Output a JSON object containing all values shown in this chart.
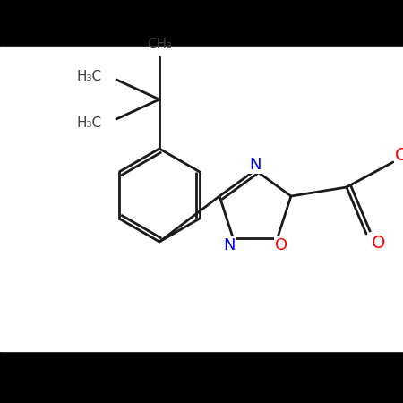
{
  "background_color": "#ffffff",
  "black_bar_color": "#000000",
  "bond_color": "#1a1a1a",
  "N_color": "#0000ff",
  "O_color": "#ff0000",
  "gray_color": "#404040",
  "figsize": [
    4.5,
    4.5
  ],
  "dpi": 100,
  "xlim": [
    0,
    450
  ],
  "ylim": [
    0,
    450
  ],
  "top_bar_height": 52,
  "bottom_bar_height": 58,
  "bond_lw": 2.0,
  "ring_label_fs": 13,
  "methyl_fs": 11
}
